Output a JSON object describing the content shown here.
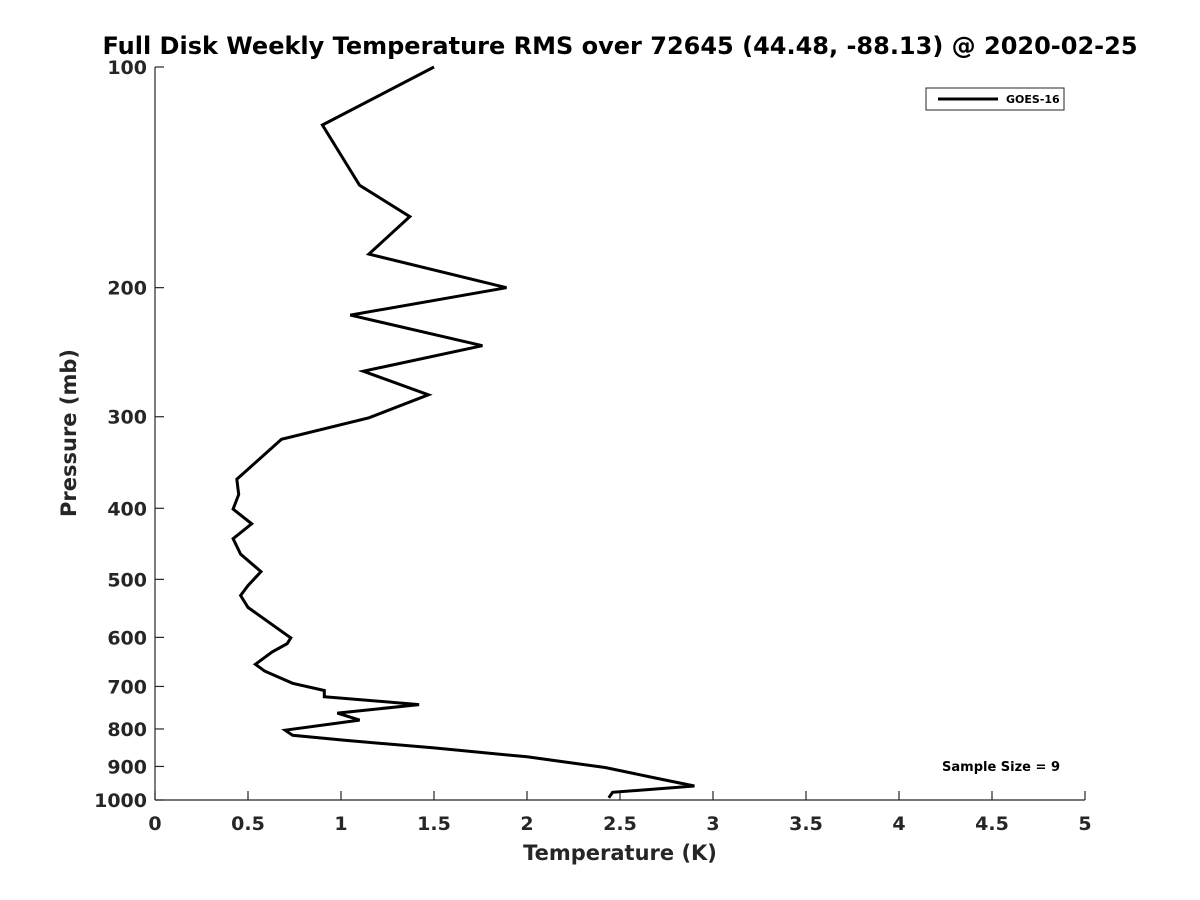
{
  "chart_data": {
    "type": "line",
    "title": "Full Disk Weekly Temperature RMS over 72645 (44.48, -88.13) @ 2020-02-25",
    "xlabel": "Temperature (K)",
    "ylabel": "Pressure (mb)",
    "xlim": [
      0,
      5
    ],
    "ylim": [
      100,
      1000
    ],
    "yscale": "log",
    "yreversed": true,
    "xticks": [
      "0",
      "0.5",
      "1",
      "1.5",
      "2",
      "2.5",
      "3",
      "3.5",
      "4",
      "4.5",
      "5"
    ],
    "xtick_values": [
      0,
      0.5,
      1,
      1.5,
      2,
      2.5,
      3,
      3.5,
      4,
      4.5,
      5
    ],
    "yticks": [
      "100",
      "200",
      "300",
      "400",
      "500",
      "600",
      "700",
      "800",
      "900",
      "1000"
    ],
    "ytick_values": [
      100,
      200,
      300,
      400,
      500,
      600,
      700,
      800,
      900,
      1000
    ],
    "grid": false,
    "legend_position": "top-right",
    "series": [
      {
        "name": "GOES-16",
        "color": "#000000",
        "points": [
          [
            1.5,
            100
          ],
          [
            0.9,
            120
          ],
          [
            1.1,
            145
          ],
          [
            1.37,
            160
          ],
          [
            1.15,
            180
          ],
          [
            1.89,
            200
          ],
          [
            1.05,
            218
          ],
          [
            1.76,
            240
          ],
          [
            1.12,
            260
          ],
          [
            1.47,
            280
          ],
          [
            1.15,
            301
          ],
          [
            0.68,
            322
          ],
          [
            0.44,
            365
          ],
          [
            0.45,
            383
          ],
          [
            0.42,
            401
          ],
          [
            0.52,
            420
          ],
          [
            0.42,
            440
          ],
          [
            0.46,
            462
          ],
          [
            0.57,
            488
          ],
          [
            0.5,
            510
          ],
          [
            0.46,
            526
          ],
          [
            0.5,
            546
          ],
          [
            0.73,
            601
          ],
          [
            0.71,
            612
          ],
          [
            0.63,
            628
          ],
          [
            0.54,
            653
          ],
          [
            0.59,
            667
          ],
          [
            0.74,
            693
          ],
          [
            0.91,
            709
          ],
          [
            0.91,
            723
          ],
          [
            1.42,
            741
          ],
          [
            0.98,
            761
          ],
          [
            1.1,
            778
          ],
          [
            0.7,
            803
          ],
          [
            0.74,
            816
          ],
          [
            1.02,
            829
          ],
          [
            1.5,
            849
          ],
          [
            2.0,
            873
          ],
          [
            2.42,
            903
          ],
          [
            2.68,
            932
          ],
          [
            2.9,
            957
          ],
          [
            2.46,
            976
          ],
          [
            2.44,
            993
          ]
        ]
      }
    ],
    "annotations": [
      {
        "text": "Sample Size = 9",
        "position": "bottom-right"
      }
    ]
  }
}
